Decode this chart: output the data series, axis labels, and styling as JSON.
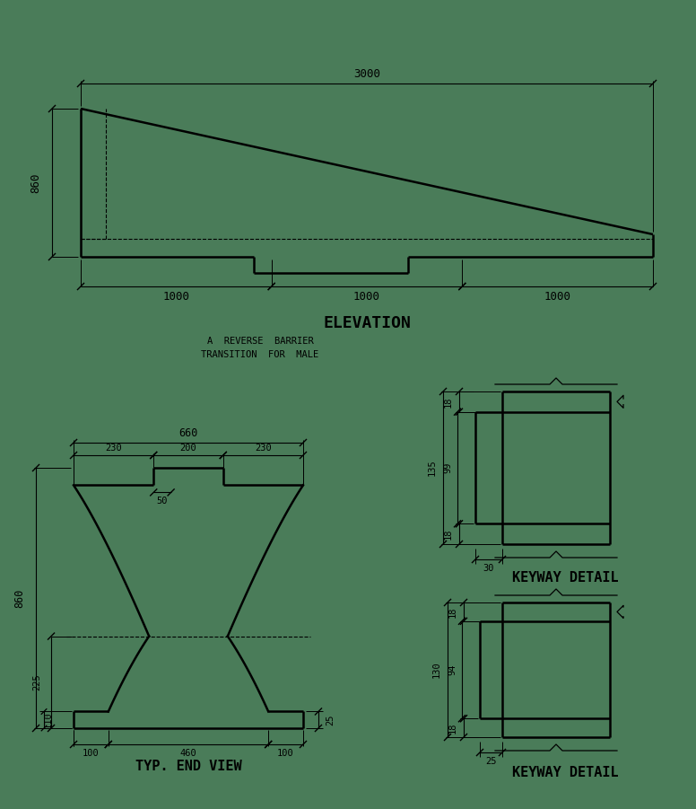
{
  "bg_color": "#4a7c59",
  "line_color": "#000000",
  "title_elevation": "ELEVATION",
  "title_endview": "TYP. END VIEW",
  "title_keyway1": "KEYWAY DETAIL",
  "title_keyway2": "KEYWAY DETAIL",
  "note_text": "A  REVERSE  BARRIER\nTRANSITION  FOR  MALE",
  "dim_3000": "3000",
  "dim_860_elev": "860",
  "dim_1000_1": "1000",
  "dim_1000_2": "1000",
  "dim_1000_3": "1000",
  "dim_660": "660",
  "dim_230_1": "230",
  "dim_200": "200",
  "dim_230_2": "230",
  "dim_50": "50",
  "dim_860_end": "860",
  "dim_225": "225",
  "dim_110": "110",
  "dim_100_1": "100",
  "dim_460": "460",
  "dim_100_2": "100",
  "dim_25_end": "25",
  "kw1_18t": "18",
  "kw1_135": "135",
  "kw1_99": "99",
  "kw1_18b": "18",
  "kw1_30": "30",
  "kw2_18t": "18",
  "kw2_130": "130",
  "kw2_94": "94",
  "kw2_18b": "18",
  "kw2_25": "25"
}
